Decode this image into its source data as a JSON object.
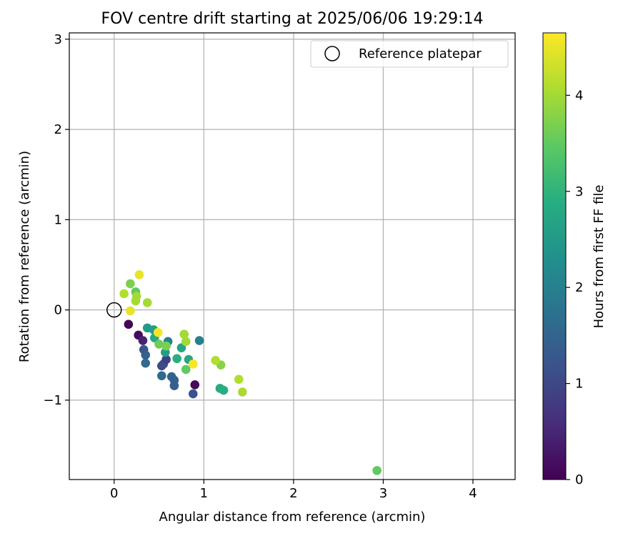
{
  "chart_data": {
    "type": "scatter",
    "title": "FOV centre drift starting at 2025/06/06 19:29:14",
    "xlabel": "Angular distance from reference (arcmin)",
    "ylabel": "Rotation from reference (arcmin)",
    "xlim": [
      -0.5,
      4.47
    ],
    "ylim": [
      -1.88,
      3.07
    ],
    "xticks": [
      0,
      1,
      2,
      3,
      4
    ],
    "yticks": [
      -1,
      0,
      1,
      2,
      3
    ],
    "grid": true,
    "colormap": "viridis",
    "legend": {
      "placement": "top-right",
      "entries": [
        {
          "label": "Reference platepar",
          "marker": "open-circle",
          "color": "#000000"
        }
      ]
    },
    "colorbar": {
      "label": "Hours from first FF file",
      "min": 0,
      "max": 4.65,
      "ticks": [
        0,
        1,
        2,
        3,
        4
      ]
    },
    "reference": {
      "x": 0,
      "y": 0
    },
    "points": [
      {
        "x": 0.16,
        "y": -0.16,
        "c": 0.05
      },
      {
        "x": 0.27,
        "y": -0.28,
        "c": 0.15
      },
      {
        "x": 0.32,
        "y": -0.34,
        "c": 0.45
      },
      {
        "x": 0.9,
        "y": -0.83,
        "c": 0.1
      },
      {
        "x": 0.33,
        "y": -0.44,
        "c": 1.2
      },
      {
        "x": 0.35,
        "y": -0.5,
        "c": 1.4
      },
      {
        "x": 0.35,
        "y": -0.59,
        "c": 1.6
      },
      {
        "x": 0.53,
        "y": -0.62,
        "c": 1.0
      },
      {
        "x": 0.55,
        "y": -0.6,
        "c": 1.1
      },
      {
        "x": 0.53,
        "y": -0.73,
        "c": 1.6
      },
      {
        "x": 0.58,
        "y": -0.55,
        "c": 0.9
      },
      {
        "x": 0.64,
        "y": -0.74,
        "c": 1.5
      },
      {
        "x": 0.67,
        "y": -0.78,
        "c": 1.45
      },
      {
        "x": 0.67,
        "y": -0.84,
        "c": 1.4
      },
      {
        "x": 0.88,
        "y": -0.93,
        "c": 1.2
      },
      {
        "x": 0.95,
        "y": -0.34,
        "c": 2.0
      },
      {
        "x": 0.6,
        "y": -0.35,
        "c": 2.0
      },
      {
        "x": 0.37,
        "y": -0.2,
        "c": 2.5
      },
      {
        "x": 0.44,
        "y": -0.22,
        "c": 2.6
      },
      {
        "x": 0.45,
        "y": -0.31,
        "c": 2.8
      },
      {
        "x": 0.57,
        "y": -0.47,
        "c": 2.6
      },
      {
        "x": 0.7,
        "y": -0.54,
        "c": 2.9
      },
      {
        "x": 0.75,
        "y": -0.42,
        "c": 2.7
      },
      {
        "x": 0.83,
        "y": -0.55,
        "c": 2.75
      },
      {
        "x": 1.18,
        "y": -0.87,
        "c": 2.8
      },
      {
        "x": 1.22,
        "y": -0.89,
        "c": 2.9
      },
      {
        "x": 0.5,
        "y": -0.38,
        "c": 3.6
      },
      {
        "x": 0.58,
        "y": -0.4,
        "c": 3.7
      },
      {
        "x": 0.8,
        "y": -0.66,
        "c": 3.5
      },
      {
        "x": 1.19,
        "y": -0.61,
        "c": 3.8
      },
      {
        "x": 0.18,
        "y": 0.29,
        "c": 3.7
      },
      {
        "x": 0.24,
        "y": 0.2,
        "c": 3.5
      },
      {
        "x": 2.93,
        "y": -1.78,
        "c": 3.5
      },
      {
        "x": 0.78,
        "y": -0.27,
        "c": 4.0
      },
      {
        "x": 0.8,
        "y": -0.35,
        "c": 4.0
      },
      {
        "x": 1.13,
        "y": -0.56,
        "c": 4.1
      },
      {
        "x": 1.39,
        "y": -0.77,
        "c": 4.1
      },
      {
        "x": 1.43,
        "y": -0.91,
        "c": 4.05
      },
      {
        "x": 0.11,
        "y": 0.18,
        "c": 4.1
      },
      {
        "x": 0.24,
        "y": 0.1,
        "c": 4.0
      },
      {
        "x": 0.25,
        "y": 0.15,
        "c": 4.0
      },
      {
        "x": 0.37,
        "y": 0.08,
        "c": 4.0
      },
      {
        "x": 0.28,
        "y": 0.39,
        "c": 4.5
      },
      {
        "x": 0.18,
        "y": -0.01,
        "c": 4.5
      },
      {
        "x": 0.49,
        "y": -0.25,
        "c": 4.6
      },
      {
        "x": 0.88,
        "y": -0.6,
        "c": 4.6
      }
    ]
  }
}
